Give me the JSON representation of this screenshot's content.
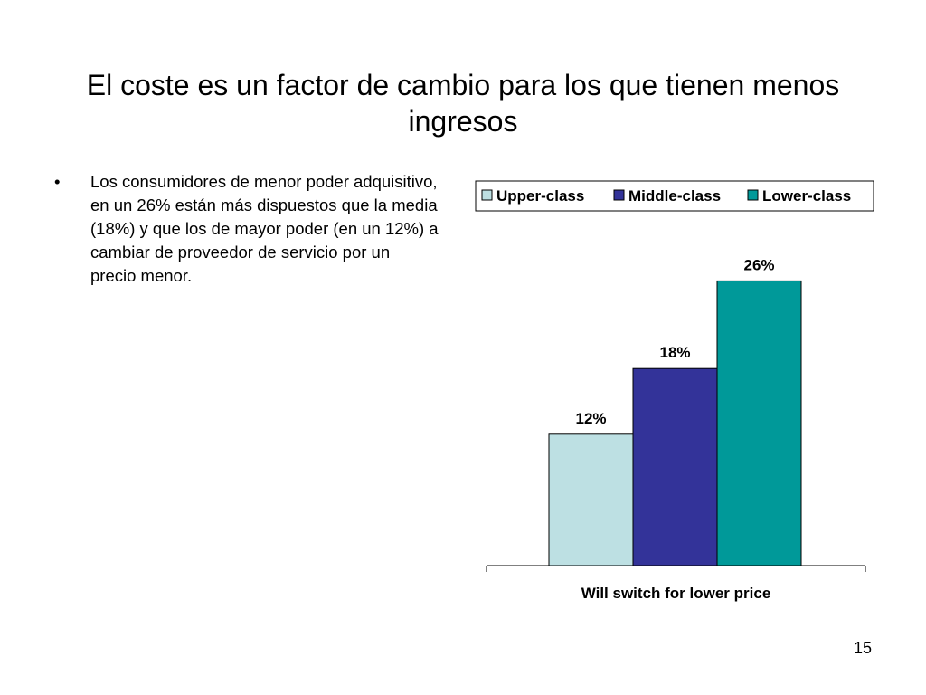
{
  "slide": {
    "title": "El coste es un factor de cambio para los que tienen menos ingresos",
    "bullet_marker": "•",
    "bullet": "Los consumidores de menor poder adquisitivo, en un 26% están más dispuestos que la media (18%) y que los de mayor poder (en un 12%) a cambiar de proveedor de servicio por un precio menor.",
    "page_number": "15"
  },
  "chart_data": {
    "type": "bar",
    "categories": [
      "Will switch for lower price"
    ],
    "series": [
      {
        "name": "Upper-class",
        "values": [
          12
        ],
        "label": "12%",
        "color": "#bde0e3"
      },
      {
        "name": "Middle-class",
        "values": [
          18
        ],
        "label": "18%",
        "color": "#333399"
      },
      {
        "name": "Lower-class",
        "values": [
          26
        ],
        "label": "26%",
        "color": "#009999"
      }
    ],
    "title": "",
    "xlabel": "",
    "ylabel": "",
    "ylim": [
      0,
      30
    ],
    "grid": false,
    "legend": "top"
  }
}
